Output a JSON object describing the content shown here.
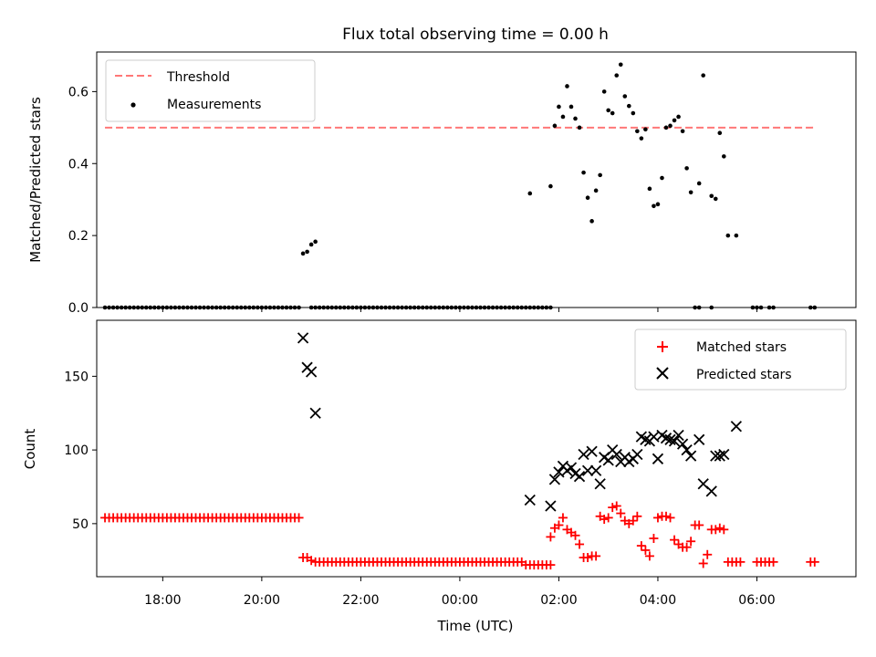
{
  "title": "Flux total observing time = 0.00 h",
  "colors": {
    "threshold": "#ff7777",
    "measurement": "#000000",
    "matched": "#ff0000",
    "predicted": "#000000"
  },
  "chart_data": [
    {
      "type": "scatter",
      "ylabel": "Matched/Predicted stars",
      "ylim": [
        0,
        0.71
      ],
      "yticks": [
        "0.0",
        "0.2",
        "0.4",
        "0.6"
      ],
      "xlim": [
        "16:40",
        "08:00"
      ],
      "legend": "top-left",
      "threshold": {
        "name": "Threshold",
        "value": 0.5,
        "x_range": [
          "16:50",
          "07:10"
        ]
      },
      "measurements": {
        "name": "Measurements",
        "zero_segments": [
          [
            "16:50",
            "20:45"
          ],
          [
            "21:00",
            "01:50"
          ]
        ],
        "zero_points": [
          "04:45",
          "04:50",
          "05:05",
          "05:55",
          "06:00",
          "06:05",
          "06:15",
          "06:20",
          "07:05",
          "07:10"
        ],
        "x": [
          "20:50",
          "20:55",
          "21:00",
          "21:05",
          "01:25",
          "01:50",
          "01:55",
          "02:00",
          "02:05",
          "02:10",
          "02:15",
          "02:20",
          "02:25",
          "02:30",
          "02:35",
          "02:40",
          "02:45",
          "02:50",
          "02:55",
          "03:00",
          "03:05",
          "03:10",
          "03:15",
          "03:20",
          "03:25",
          "03:30",
          "03:35",
          "03:40",
          "03:45",
          "03:50",
          "03:55",
          "04:00",
          "04:05",
          "04:10",
          "04:15",
          "04:20",
          "04:25",
          "04:30",
          "04:35",
          "04:40",
          "04:50",
          "04:55",
          "05:05",
          "05:10",
          "05:15",
          "05:20",
          "05:25",
          "05:35"
        ],
        "y": [
          0.15,
          0.155,
          0.175,
          0.183,
          0.317,
          0.337,
          0.505,
          0.558,
          0.53,
          0.615,
          0.558,
          0.525,
          0.5,
          0.375,
          0.305,
          0.24,
          0.325,
          0.368,
          0.6,
          0.548,
          0.54,
          0.645,
          0.675,
          0.587,
          0.56,
          0.54,
          0.49,
          0.47,
          0.495,
          0.33,
          0.282,
          0.287,
          0.36,
          0.5,
          0.505,
          0.52,
          0.53,
          0.49,
          0.387,
          0.32,
          0.345,
          0.645,
          0.31,
          0.302,
          0.485,
          0.42,
          0.2,
          0.2
        ]
      }
    },
    {
      "type": "scatter",
      "xlabel": "Time (UTC)",
      "ylabel": "Count",
      "ylim": [
        14,
        188
      ],
      "yticks": [
        "50",
        "100",
        "150"
      ],
      "xticks": [
        "18:00",
        "20:00",
        "22:00",
        "00:00",
        "02:00",
        "04:00",
        "06:00"
      ],
      "xlim": [
        "16:40",
        "08:00"
      ],
      "legend": "top-right",
      "matched": {
        "name": "Matched stars",
        "x": [
          "20:50",
          "20:55",
          "21:00",
          "21:05",
          "01:50",
          "01:55",
          "02:00",
          "02:05",
          "02:10",
          "02:15",
          "02:20",
          "02:25",
          "02:30",
          "02:35",
          "02:40",
          "02:45",
          "02:50",
          "02:55",
          "03:00",
          "03:05",
          "03:10",
          "03:15",
          "03:20",
          "03:25",
          "03:30",
          "03:35",
          "03:40",
          "03:45",
          "03:50",
          "03:55",
          "04:00",
          "04:05",
          "04:10",
          "04:15",
          "04:20",
          "04:25",
          "04:30",
          "04:35",
          "04:40",
          "04:45",
          "04:50",
          "04:55",
          "05:00",
          "05:05",
          "05:10",
          "05:15",
          "05:20",
          "05:25",
          "05:30",
          "05:35",
          "05:40",
          "06:00",
          "06:05",
          "06:10",
          "06:15",
          "06:20",
          "07:05",
          "07:10"
        ],
        "y": [
          27,
          27,
          25,
          24,
          41,
          47,
          49,
          54,
          46,
          44,
          42,
          36,
          27,
          27,
          28,
          28,
          55,
          53,
          54,
          61,
          62,
          57,
          52,
          50,
          52,
          55,
          35,
          32,
          28,
          40,
          54,
          55,
          55,
          54,
          39,
          36,
          34,
          34,
          38,
          49,
          49,
          23,
          29,
          46,
          46,
          47,
          46,
          24,
          24,
          24,
          24,
          24,
          24,
          24,
          24,
          24,
          24,
          24
        ],
        "flat_segments": [
          {
            "from": "16:50",
            "to": "20:45",
            "value": 54
          },
          {
            "from": "21:10",
            "to": "01:15",
            "value": 24
          },
          {
            "from": "01:20",
            "to": "01:50",
            "value": 22
          }
        ]
      },
      "predicted": {
        "name": "Predicted stars",
        "x": [
          "20:50",
          "20:55",
          "21:00",
          "21:05",
          "01:25",
          "01:50",
          "01:55",
          "02:00",
          "02:05",
          "02:10",
          "02:15",
          "02:20",
          "02:25",
          "02:30",
          "02:35",
          "02:40",
          "02:45",
          "02:50",
          "02:55",
          "03:00",
          "03:05",
          "03:10",
          "03:15",
          "03:20",
          "03:25",
          "03:30",
          "03:35",
          "03:40",
          "03:45",
          "03:50",
          "03:55",
          "04:00",
          "04:05",
          "04:10",
          "04:15",
          "04:20",
          "04:25",
          "04:30",
          "04:35",
          "04:40",
          "04:50",
          "04:55",
          "05:05",
          "05:10",
          "05:15",
          "05:20",
          "05:35"
        ],
        "y": [
          176,
          156,
          153,
          125,
          66,
          62,
          80,
          85,
          89,
          86,
          88,
          84,
          82,
          97,
          86,
          99,
          86,
          77,
          95,
          93,
          100,
          97,
          92,
          95,
          92,
          94,
          97,
          109,
          107,
          106,
          109,
          94,
          110,
          108,
          107,
          106,
          110,
          104,
          100,
          96,
          107,
          77,
          72,
          96,
          96,
          97,
          116
        ]
      }
    }
  ]
}
